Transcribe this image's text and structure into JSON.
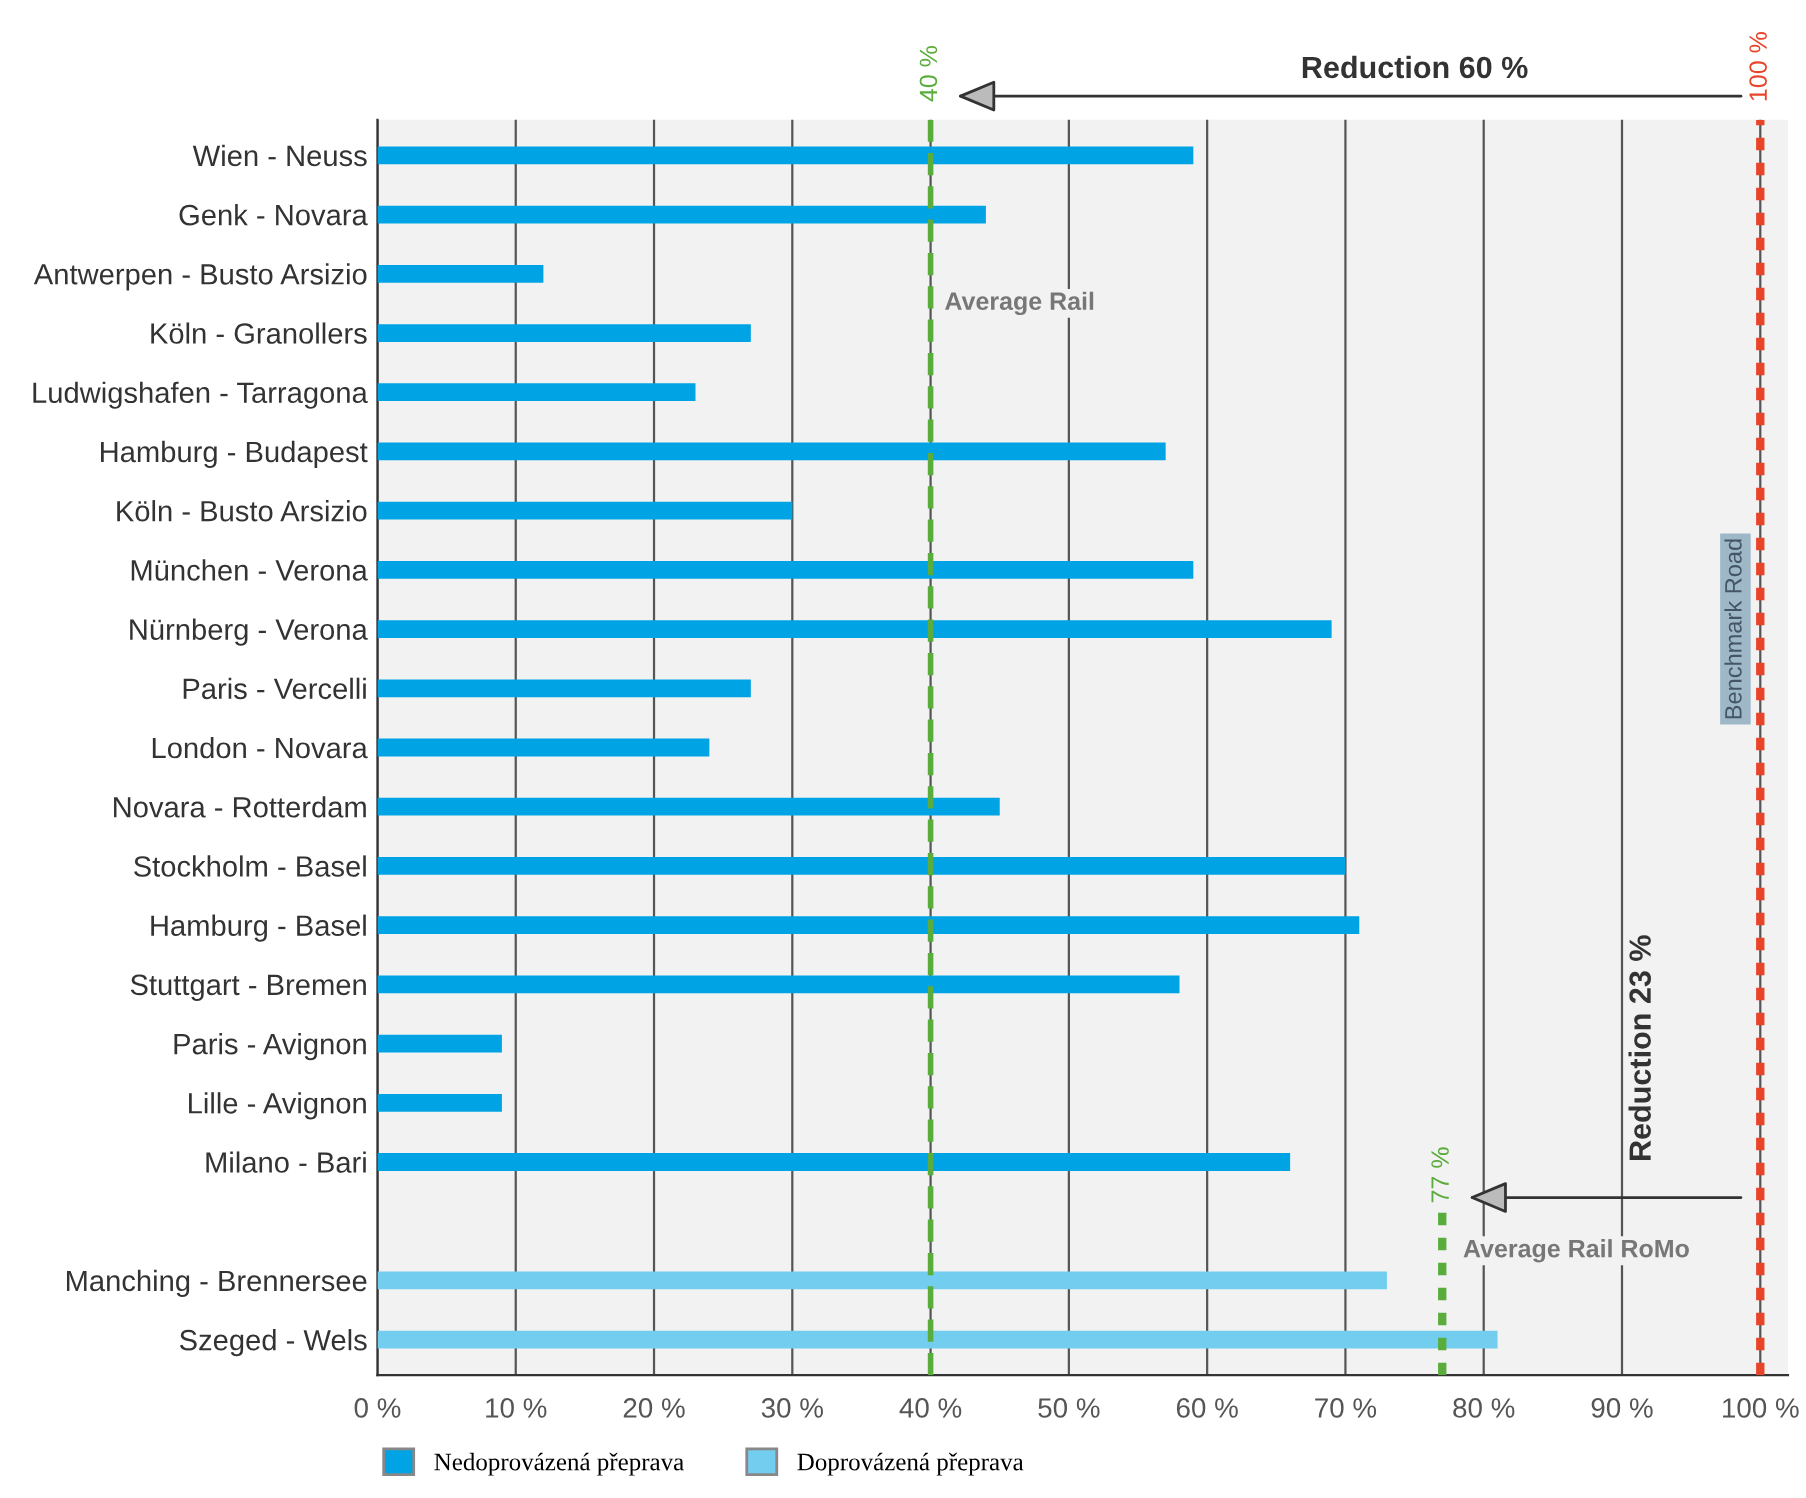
{
  "chart_data": {
    "type": "bar",
    "orientation": "horizontal",
    "categories": [
      "Wien - Neuss",
      "Genk - Novara",
      "Antwerpen - Busto Arsizio",
      "Köln - Granollers",
      "Ludwigshafen - Tarragona",
      "Hamburg - Budapest",
      "Köln - Busto Arsizio",
      "München - Verona",
      "Nürnberg - Verona",
      "Paris - Vercelli",
      "London - Novara",
      "Novara - Rotterdam",
      "Stockholm - Basel",
      "Hamburg - Basel",
      "Stuttgart - Bremen",
      "Paris - Avignon",
      "Lille - Avignon",
      "Milano - Bari",
      null,
      "Manching - Brennersee",
      "Szeged - Wels"
    ],
    "series": [
      {
        "name": "Nedoprovázená přeprava",
        "color": "#00a3e4",
        "values": [
          59,
          44,
          12,
          27,
          23,
          57,
          30,
          59,
          69,
          27,
          24,
          45,
          70,
          71,
          58,
          9,
          9,
          66,
          null,
          null,
          null
        ]
      },
      {
        "name": "Doprovázená přeprava",
        "color": "#72cdef",
        "values": [
          null,
          null,
          null,
          null,
          null,
          null,
          null,
          null,
          null,
          null,
          null,
          null,
          null,
          null,
          null,
          null,
          null,
          null,
          null,
          73,
          81
        ]
      }
    ],
    "xlim": [
      0,
      102
    ],
    "xticks": [
      {
        "value": 0,
        "label": "0 %"
      },
      {
        "value": 10,
        "label": "10 %"
      },
      {
        "value": 20,
        "label": "20 %"
      },
      {
        "value": 30,
        "label": "30 %"
      },
      {
        "value": 40,
        "label": "40 %"
      },
      {
        "value": 50,
        "label": "50 %"
      },
      {
        "value": 60,
        "label": "60 %"
      },
      {
        "value": 70,
        "label": "70 %"
      },
      {
        "value": 80,
        "label": "80 %"
      },
      {
        "value": 90,
        "label": "90 %"
      },
      {
        "value": 100,
        "label": "100 %"
      }
    ],
    "grid": "x",
    "legend": "bottom left",
    "ref_lines": [
      {
        "axis": "x",
        "value": 40,
        "label": "40 %",
        "color": "#5aad3c",
        "line_style": "dashed"
      },
      {
        "axis": "x",
        "value": 77,
        "label": "77 %",
        "color": "#5aad3c",
        "line_style": "dotted"
      },
      {
        "axis": "x",
        "value": 100,
        "label": "100 %",
        "color": "#e8442a",
        "line_style": "dotted"
      }
    ],
    "annotations": [
      "Average Rail",
      "Average Rail RoMo",
      "Benchmark Road",
      "Reduction 60 %",
      "Reduction 23 %"
    ]
  }
}
